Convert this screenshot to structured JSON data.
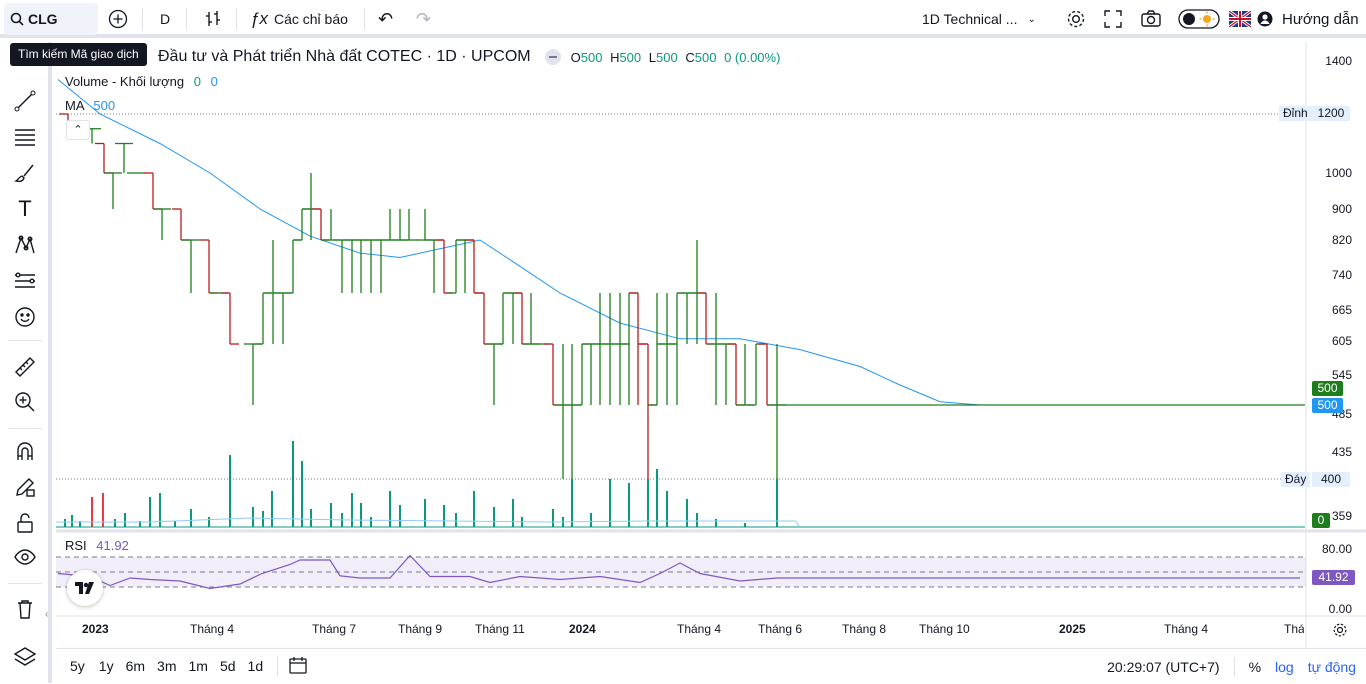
{
  "toolbar": {
    "symbol": "CLG",
    "interval": "D",
    "indicators_label": "Các chỉ báo",
    "layout_name": "1D Technical ...",
    "guide_label": "Hướng dẫn"
  },
  "tooltip": "Tìm kiếm Mã giao dịch",
  "legend": {
    "title": "Đầu tư và Phát triển Nhà đất COTEC · 1D · UPCOM",
    "o_label": "O",
    "o": "500",
    "h_label": "H",
    "h": "500",
    "l_label": "L",
    "l": "500",
    "c_label": "C",
    "c": "500",
    "change": "0 (0.00%)"
  },
  "volume": {
    "label": "Volume - Khối lượng",
    "v1": "0",
    "v2": "0"
  },
  "ma": {
    "label": "MA",
    "value": "500"
  },
  "rsi": {
    "label": "RSI",
    "value": "41.92",
    "upper": "80.00",
    "lower": "0.00"
  },
  "price_axis": {
    "ticks": [
      "1400",
      "1200",
      "1000",
      "900",
      "820",
      "740",
      "665",
      "605",
      "545",
      "485",
      "435",
      "400",
      "359"
    ],
    "high_label": "Đỉnh",
    "high_value": "1200",
    "low_label": "Đáy",
    "low_value": "400",
    "last_price_tag": "500",
    "ma_tag": "500",
    "volume_tag": "0",
    "rsi_tag": "41.92"
  },
  "time_axis": [
    "2023",
    "Tháng 4",
    "Tháng 7",
    "Tháng 9",
    "Tháng 11",
    "2024",
    "Tháng 4",
    "Tháng 6",
    "Tháng 8",
    "Tháng 10",
    "2025",
    "Tháng 4",
    "Tháng"
  ],
  "ranges": [
    "5y",
    "1y",
    "6m",
    "3m",
    "1m",
    "5d",
    "1d"
  ],
  "bottom": {
    "time": "20:29:07 (UTC+7)",
    "percent": "%",
    "log": "log",
    "auto": "tự động"
  },
  "colors": {
    "up": "#089981",
    "down": "#f23645",
    "bar_up": "#1e7e1e",
    "bar_down": "#b71c1c",
    "ma": "#2196f3",
    "rsi": "#7e57c2",
    "accent": "#2962ff"
  },
  "chart_data": {
    "type": "bar",
    "price_bars": [
      {
        "x": 68,
        "o": 1200,
        "h": 1200,
        "l": 1120,
        "c": 1120
      },
      {
        "x": 92,
        "o": 1150,
        "h": 1150,
        "l": 1100,
        "c": 1150
      },
      {
        "x": 104,
        "o": 1100,
        "h": 1100,
        "l": 1000,
        "c": 1000
      },
      {
        "x": 113,
        "o": 1000,
        "h": 1000,
        "l": 900,
        "c": 1000
      },
      {
        "x": 124,
        "o": 1100,
        "h": 1100,
        "l": 1000,
        "c": 1100
      },
      {
        "x": 136,
        "o": 1000,
        "h": 1000,
        "l": 1000,
        "c": 1000
      },
      {
        "x": 153,
        "o": 1000,
        "h": 1000,
        "l": 900,
        "c": 900
      },
      {
        "x": 162,
        "o": 900,
        "h": 900,
        "l": 820,
        "c": 900
      },
      {
        "x": 181,
        "o": 900,
        "h": 900,
        "l": 820,
        "c": 820
      },
      {
        "x": 191,
        "o": 820,
        "h": 820,
        "l": 700,
        "c": 820
      },
      {
        "x": 209,
        "o": 820,
        "h": 820,
        "l": 700,
        "c": 700
      },
      {
        "x": 219,
        "o": 700,
        "h": 700,
        "l": 700,
        "c": 700
      },
      {
        "x": 230,
        "o": 700,
        "h": 700,
        "l": 600,
        "c": 600
      },
      {
        "x": 253,
        "o": 600,
        "h": 600,
        "l": 500,
        "c": 600
      },
      {
        "x": 263,
        "o": 600,
        "h": 700,
        "l": 600,
        "c": 700
      },
      {
        "x": 273,
        "o": 700,
        "h": 820,
        "l": 600,
        "c": 700
      },
      {
        "x": 283,
        "o": 700,
        "h": 700,
        "l": 600,
        "c": 700
      },
      {
        "x": 293,
        "o": 700,
        "h": 820,
        "l": 700,
        "c": 820
      },
      {
        "x": 302,
        "o": 820,
        "h": 900,
        "l": 820,
        "c": 900
      },
      {
        "x": 311,
        "o": 900,
        "h": 1000,
        "l": 820,
        "c": 900
      },
      {
        "x": 321,
        "o": 900,
        "h": 900,
        "l": 820,
        "c": 820
      },
      {
        "x": 331,
        "o": 820,
        "h": 900,
        "l": 820,
        "c": 820
      },
      {
        "x": 342,
        "o": 820,
        "h": 820,
        "l": 700,
        "c": 820
      },
      {
        "x": 352,
        "o": 820,
        "h": 820,
        "l": 700,
        "c": 820
      },
      {
        "x": 361,
        "o": 820,
        "h": 820,
        "l": 700,
        "c": 820
      },
      {
        "x": 371,
        "o": 820,
        "h": 820,
        "l": 700,
        "c": 820
      },
      {
        "x": 381,
        "o": 820,
        "h": 820,
        "l": 700,
        "c": 820
      },
      {
        "x": 390,
        "o": 820,
        "h": 900,
        "l": 820,
        "c": 820
      },
      {
        "x": 400,
        "o": 820,
        "h": 900,
        "l": 820,
        "c": 820
      },
      {
        "x": 409,
        "o": 820,
        "h": 900,
        "l": 820,
        "c": 820
      },
      {
        "x": 425,
        "o": 820,
        "h": 900,
        "l": 820,
        "c": 820
      },
      {
        "x": 434,
        "o": 820,
        "h": 820,
        "l": 700,
        "c": 820
      },
      {
        "x": 444,
        "o": 820,
        "h": 820,
        "l": 700,
        "c": 700
      },
      {
        "x": 456,
        "o": 700,
        "h": 820,
        "l": 700,
        "c": 820
      },
      {
        "x": 465,
        "o": 820,
        "h": 820,
        "l": 700,
        "c": 820
      },
      {
        "x": 474,
        "o": 820,
        "h": 820,
        "l": 700,
        "c": 700
      },
      {
        "x": 484,
        "o": 700,
        "h": 700,
        "l": 600,
        "c": 600
      },
      {
        "x": 494,
        "o": 600,
        "h": 600,
        "l": 500,
        "c": 600
      },
      {
        "x": 503,
        "o": 600,
        "h": 700,
        "l": 600,
        "c": 700
      },
      {
        "x": 513,
        "o": 700,
        "h": 700,
        "l": 600,
        "c": 700
      },
      {
        "x": 522,
        "o": 700,
        "h": 700,
        "l": 600,
        "c": 600
      },
      {
        "x": 531,
        "o": 600,
        "h": 700,
        "l": 600,
        "c": 600
      },
      {
        "x": 541,
        "o": 600,
        "h": 600,
        "l": 600,
        "c": 600
      },
      {
        "x": 553,
        "o": 600,
        "h": 600,
        "l": 500,
        "c": 500
      },
      {
        "x": 563,
        "o": 500,
        "h": 600,
        "l": 400,
        "c": 500
      },
      {
        "x": 572,
        "o": 500,
        "h": 600,
        "l": 400,
        "c": 500
      },
      {
        "x": 582,
        "o": 500,
        "h": 600,
        "l": 500,
        "c": 600
      },
      {
        "x": 591,
        "o": 600,
        "h": 600,
        "l": 500,
        "c": 600
      },
      {
        "x": 600,
        "o": 600,
        "h": 700,
        "l": 500,
        "c": 600
      },
      {
        "x": 610,
        "o": 600,
        "h": 700,
        "l": 500,
        "c": 600
      },
      {
        "x": 620,
        "o": 600,
        "h": 700,
        "l": 500,
        "c": 600
      },
      {
        "x": 629,
        "o": 600,
        "h": 700,
        "l": 500,
        "c": 700
      },
      {
        "x": 638,
        "o": 700,
        "h": 700,
        "l": 500,
        "c": 600
      },
      {
        "x": 648,
        "o": 600,
        "h": 600,
        "l": 400,
        "c": 500
      },
      {
        "x": 657,
        "o": 500,
        "h": 700,
        "l": 500,
        "c": 600
      },
      {
        "x": 667,
        "o": 600,
        "h": 700,
        "l": 500,
        "c": 600
      },
      {
        "x": 677,
        "o": 600,
        "h": 700,
        "l": 500,
        "c": 700
      },
      {
        "x": 687,
        "o": 700,
        "h": 700,
        "l": 600,
        "c": 700
      },
      {
        "x": 697,
        "o": 700,
        "h": 820,
        "l": 600,
        "c": 700
      },
      {
        "x": 706,
        "o": 700,
        "h": 700,
        "l": 600,
        "c": 600
      },
      {
        "x": 716,
        "o": 600,
        "h": 700,
        "l": 500,
        "c": 600
      },
      {
        "x": 726,
        "o": 600,
        "h": 600,
        "l": 500,
        "c": 600
      },
      {
        "x": 736,
        "o": 600,
        "h": 600,
        "l": 500,
        "c": 500
      },
      {
        "x": 745,
        "o": 500,
        "h": 600,
        "l": 500,
        "c": 500
      },
      {
        "x": 756,
        "o": 500,
        "h": 600,
        "l": 500,
        "c": 600
      },
      {
        "x": 767,
        "o": 600,
        "h": 600,
        "l": 500,
        "c": 500
      },
      {
        "x": 777,
        "o": 500,
        "h": 600,
        "l": 400,
        "c": 500
      }
    ],
    "flat_close": 500,
    "ma_line": [
      {
        "x": 58,
        "y": 1330
      },
      {
        "x": 100,
        "y": 1200
      },
      {
        "x": 160,
        "y": 1100
      },
      {
        "x": 210,
        "y": 1000
      },
      {
        "x": 260,
        "y": 900
      },
      {
        "x": 310,
        "y": 830
      },
      {
        "x": 360,
        "y": 790
      },
      {
        "x": 400,
        "y": 780
      },
      {
        "x": 440,
        "y": 800
      },
      {
        "x": 480,
        "y": 820
      },
      {
        "x": 520,
        "y": 760
      },
      {
        "x": 560,
        "y": 700
      },
      {
        "x": 620,
        "y": 640
      },
      {
        "x": 680,
        "y": 610
      },
      {
        "x": 740,
        "y": 610
      },
      {
        "x": 800,
        "y": 590
      },
      {
        "x": 860,
        "y": 560
      },
      {
        "x": 900,
        "y": 530
      },
      {
        "x": 940,
        "y": 505
      },
      {
        "x": 980,
        "y": 500
      },
      {
        "x": 1300,
        "y": 500
      }
    ],
    "volume_bars": [
      {
        "x": 65,
        "v": 8
      },
      {
        "x": 72,
        "v": 12
      },
      {
        "x": 80,
        "v": 6
      },
      {
        "x": 92,
        "v": 30
      },
      {
        "x": 103,
        "v": 34
      },
      {
        "x": 115,
        "v": 8
      },
      {
        "x": 125,
        "v": 14
      },
      {
        "x": 140,
        "v": 6
      },
      {
        "x": 150,
        "v": 30
      },
      {
        "x": 160,
        "v": 34
      },
      {
        "x": 175,
        "v": 6
      },
      {
        "x": 191,
        "v": 18
      },
      {
        "x": 209,
        "v": 10
      },
      {
        "x": 230,
        "v": 72
      },
      {
        "x": 253,
        "v": 20
      },
      {
        "x": 263,
        "v": 16
      },
      {
        "x": 272,
        "v": 36
      },
      {
        "x": 293,
        "v": 86
      },
      {
        "x": 302,
        "v": 66
      },
      {
        "x": 311,
        "v": 18
      },
      {
        "x": 331,
        "v": 24
      },
      {
        "x": 342,
        "v": 14
      },
      {
        "x": 352,
        "v": 34
      },
      {
        "x": 361,
        "v": 24
      },
      {
        "x": 371,
        "v": 10
      },
      {
        "x": 390,
        "v": 36
      },
      {
        "x": 400,
        "v": 22
      },
      {
        "x": 425,
        "v": 28
      },
      {
        "x": 444,
        "v": 22
      },
      {
        "x": 456,
        "v": 14
      },
      {
        "x": 474,
        "v": 36
      },
      {
        "x": 494,
        "v": 20
      },
      {
        "x": 513,
        "v": 28
      },
      {
        "x": 522,
        "v": 10
      },
      {
        "x": 553,
        "v": 18
      },
      {
        "x": 563,
        "v": 10
      },
      {
        "x": 572,
        "v": 48
      },
      {
        "x": 591,
        "v": 14
      },
      {
        "x": 610,
        "v": 48
      },
      {
        "x": 629,
        "v": 44
      },
      {
        "x": 648,
        "v": 48
      },
      {
        "x": 657,
        "v": 58
      },
      {
        "x": 667,
        "v": 36
      },
      {
        "x": 687,
        "v": 28
      },
      {
        "x": 697,
        "v": 14
      },
      {
        "x": 716,
        "v": 8
      },
      {
        "x": 745,
        "v": 4
      },
      {
        "x": 777,
        "v": 48
      }
    ],
    "rsi_line": [
      {
        "x": 58,
        "y": 48
      },
      {
        "x": 90,
        "y": 44
      },
      {
        "x": 110,
        "y": 32
      },
      {
        "x": 130,
        "y": 42
      },
      {
        "x": 150,
        "y": 40
      },
      {
        "x": 180,
        "y": 38
      },
      {
        "x": 210,
        "y": 28
      },
      {
        "x": 240,
        "y": 34
      },
      {
        "x": 262,
        "y": 48
      },
      {
        "x": 290,
        "y": 60
      },
      {
        "x": 300,
        "y": 66
      },
      {
        "x": 330,
        "y": 66
      },
      {
        "x": 340,
        "y": 45
      },
      {
        "x": 360,
        "y": 42
      },
      {
        "x": 390,
        "y": 42
      },
      {
        "x": 410,
        "y": 72
      },
      {
        "x": 430,
        "y": 44
      },
      {
        "x": 470,
        "y": 44
      },
      {
        "x": 490,
        "y": 36
      },
      {
        "x": 520,
        "y": 44
      },
      {
        "x": 560,
        "y": 40
      },
      {
        "x": 600,
        "y": 44
      },
      {
        "x": 640,
        "y": 36
      },
      {
        "x": 660,
        "y": 48
      },
      {
        "x": 680,
        "y": 62
      },
      {
        "x": 700,
        "y": 48
      },
      {
        "x": 740,
        "y": 38
      },
      {
        "x": 777,
        "y": 42
      },
      {
        "x": 1300,
        "y": 42
      }
    ],
    "rsi_bands": [
      70,
      50,
      30
    ]
  }
}
